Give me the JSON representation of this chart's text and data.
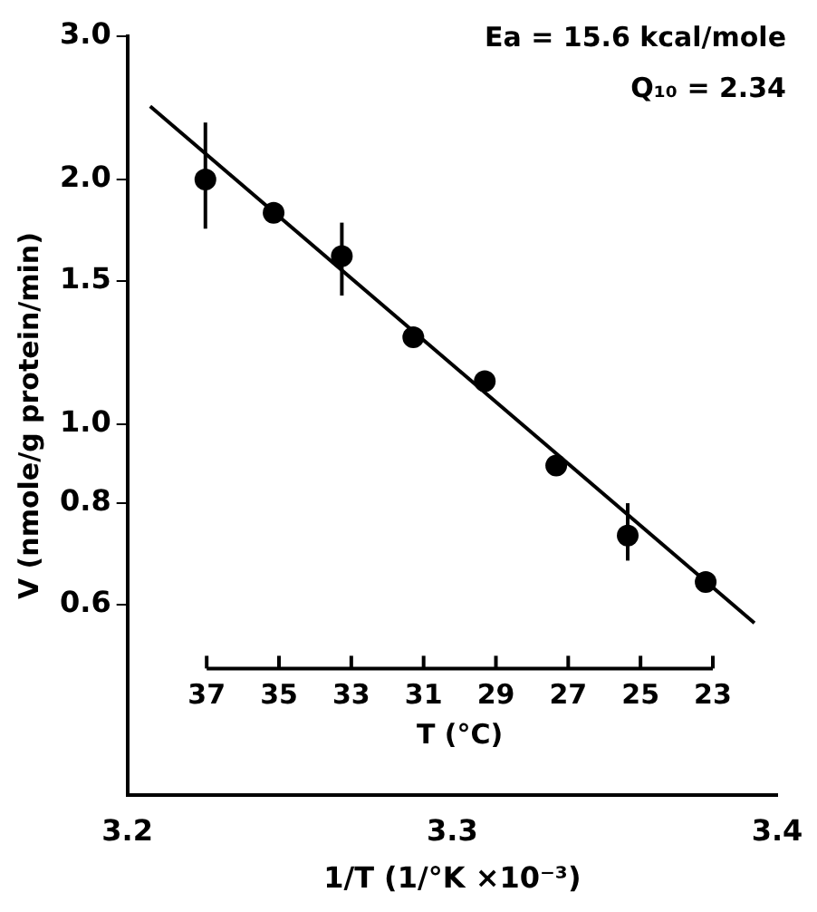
{
  "chart_data": {
    "type": "scatter",
    "xlabel": "1/T (1/°K ×10⁻³)",
    "ylabel": "V (nmole/g protein/min)",
    "x2label": "T (°C)",
    "annotations": [
      "Ea = 15.6 kcal/mole",
      "Q₁₀ = 2.34"
    ],
    "xlim": [
      3.2,
      3.4
    ],
    "xticks": [
      3.2,
      3.3,
      3.4
    ],
    "ylim": [
      0.35,
      3.0
    ],
    "yticks": [
      0.6,
      0.8,
      {
        "value": 1,
        "label": "1.0"
      },
      1.5,
      {
        "value": 2,
        "label": "2.0"
      },
      {
        "value": 3,
        "label": "3.0"
      }
    ],
    "log": "y",
    "grid": false,
    "legend": false,
    "marker": "circle",
    "x2lim": [
      37,
      23
    ],
    "x2ticks": [
      37,
      35,
      33,
      31,
      29,
      27,
      25,
      23
    ],
    "series": [
      {
        "color": "#000000",
        "x": [
          3.224,
          3.245,
          3.266,
          3.288,
          3.31,
          3.332,
          3.354,
          3.378
        ],
        "values": [
          2.0,
          1.82,
          1.61,
          1.28,
          1.13,
          0.89,
          0.73,
          0.64
        ],
        "errors": [
          [
            1.74,
            2.35
          ],
          null,
          [
            1.44,
            1.77
          ],
          null,
          null,
          null,
          [
            0.68,
            0.8
          ],
          null
        ]
      },
      {
        "type": "line",
        "color": "#000000",
        "x": [
          3.207,
          3.393
        ],
        "values": [
          2.46,
          0.57
        ],
        "marker": "none"
      }
    ]
  }
}
